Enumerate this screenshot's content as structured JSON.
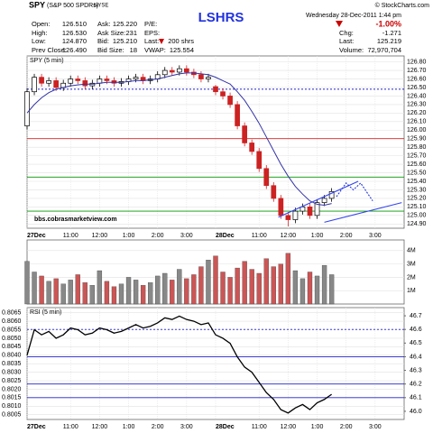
{
  "header": {
    "symbol": "SPY",
    "name": "(S&P 500 SPDRs)",
    "exchange": "NYSE",
    "copyright": "© StockCharts.com",
    "title": "LSHRS",
    "date": "Wednesday 28-Dec-2011 1:44 pm",
    "change_pct": "-1.00%",
    "quote": [
      [
        "Open:",
        "126.510"
      ],
      [
        "High:",
        "126.530"
      ],
      [
        "Low:",
        "124.870"
      ],
      [
        "Prev Close:",
        "126.490"
      ]
    ],
    "book": [
      [
        "Ask:",
        "125.220"
      ],
      [
        "Ask Size:",
        "231"
      ],
      [
        "Bid:",
        "125.210"
      ],
      [
        "Bid Size:",
        "18"
      ]
    ],
    "stats": [
      [
        "P/E:"
      ],
      [
        "EPS:"
      ],
      [
        "Last:",
        "200 shrs"
      ],
      [
        "VWAP:",
        "125.554"
      ]
    ],
    "summary": [
      [
        "Chg:",
        "-1.271"
      ],
      [
        "Last:",
        "125.219"
      ],
      [
        "Volume:",
        "72,970,704"
      ]
    ]
  },
  "chart_data": [
    {
      "type": "candlestick",
      "title": "SPY (5 min)",
      "annotation": "bbs.cobrasmarketview.com",
      "x": [
        0,
        3,
        6,
        9,
        12,
        15,
        18,
        21,
        24,
        27,
        30,
        33,
        36,
        39,
        42,
        45,
        48,
        51,
        54,
        57,
        60,
        63,
        66,
        69,
        72,
        75,
        78,
        81,
        84,
        87,
        90,
        93,
        96,
        99,
        102,
        105,
        108,
        111,
        114,
        117,
        120,
        123,
        126
      ],
      "open": [
        126.05,
        126.45,
        126.62,
        126.55,
        126.58,
        126.5,
        126.55,
        126.6,
        126.58,
        126.52,
        126.55,
        126.6,
        126.58,
        126.55,
        126.57,
        126.6,
        126.62,
        126.58,
        126.6,
        126.65,
        126.7,
        126.68,
        126.72,
        126.68,
        126.65,
        126.6,
        126.51,
        126.45,
        126.4,
        126.3,
        126.05,
        125.85,
        125.75,
        125.55,
        125.35,
        125.2,
        125.0,
        124.95,
        125.05,
        125.1,
        125.0,
        125.15,
        125.2
      ],
      "high": [
        126.49,
        126.66,
        126.66,
        126.62,
        126.62,
        126.59,
        126.64,
        126.64,
        126.62,
        126.59,
        126.64,
        126.64,
        126.62,
        126.61,
        126.64,
        126.66,
        126.66,
        126.64,
        126.69,
        126.74,
        126.74,
        126.76,
        126.76,
        126.72,
        126.69,
        126.66,
        126.53,
        126.49,
        126.44,
        126.34,
        126.09,
        125.89,
        125.79,
        125.59,
        125.39,
        125.24,
        125.04,
        125.09,
        125.14,
        125.14,
        125.19,
        125.24,
        125.32
      ],
      "low": [
        126.01,
        126.41,
        126.51,
        126.51,
        126.46,
        126.46,
        126.51,
        126.54,
        126.48,
        126.48,
        126.51,
        126.54,
        126.51,
        126.51,
        126.53,
        126.56,
        126.54,
        126.54,
        126.56,
        126.61,
        126.64,
        126.64,
        126.64,
        126.61,
        126.56,
        126.56,
        126.41,
        126.36,
        126.26,
        126.01,
        125.81,
        125.71,
        125.51,
        125.31,
        125.16,
        124.96,
        124.87,
        124.91,
        125.01,
        124.96,
        124.96,
        125.11,
        125.16
      ],
      "close": [
        126.45,
        126.62,
        126.55,
        126.58,
        126.5,
        126.55,
        126.6,
        126.58,
        126.52,
        126.55,
        126.6,
        126.58,
        126.55,
        126.57,
        126.6,
        126.62,
        126.58,
        126.6,
        126.65,
        126.7,
        126.68,
        126.72,
        126.68,
        126.65,
        126.6,
        126.62,
        126.45,
        126.4,
        126.3,
        126.05,
        125.85,
        125.75,
        125.55,
        125.35,
        125.2,
        125.0,
        124.95,
        125.05,
        125.1,
        125.0,
        125.15,
        125.2,
        125.28
      ],
      "up_color": "#000000",
      "down_color": "#cc2222",
      "ma": {
        "color": "#3333aa",
        "values": [
          126.2,
          126.3,
          126.38,
          126.44,
          126.48,
          126.5,
          126.52,
          126.53,
          126.54,
          126.54,
          126.55,
          126.56,
          126.56,
          126.56,
          126.57,
          126.58,
          126.58,
          126.59,
          126.6,
          126.62,
          126.64,
          126.66,
          126.67,
          126.67,
          126.66,
          126.65,
          126.62,
          126.58,
          126.54,
          126.45,
          126.35,
          126.22,
          126.08,
          125.92,
          125.76,
          125.6,
          125.46,
          125.34,
          125.25,
          125.17,
          125.13,
          125.12,
          125.14
        ]
      },
      "levels": [
        {
          "value": 125.05,
          "color": "#009900"
        },
        {
          "value": 125.45,
          "color": "#009900"
        },
        {
          "value": 125.9,
          "color": "#dd2222"
        },
        {
          "value": 126.48,
          "color": "#2222cc",
          "dashed": true
        }
      ],
      "trendlines": [
        {
          "color": "#3344ee",
          "points": [
            [
              104,
              124.98
            ],
            [
              137,
              125.4
            ]
          ]
        },
        {
          "color": "#3344ee",
          "points": [
            [
              123,
              124.92
            ],
            [
              155,
              125.15
            ]
          ]
        },
        {
          "color": "#2233dd",
          "dashed": true,
          "points": [
            [
              128,
              125.22
            ],
            [
              132,
              125.38
            ],
            [
              135,
              125.3
            ],
            [
              138,
              125.38
            ],
            [
              143,
              125.17
            ]
          ]
        }
      ],
      "xlim": [
        0,
        156
      ],
      "ylim": [
        124.85,
        126.87
      ],
      "xticks": [
        {
          "value": 0,
          "label": "27Dec"
        },
        {
          "value": 18,
          "label": "11:00"
        },
        {
          "value": 30,
          "label": "12:00"
        },
        {
          "value": 42,
          "label": "1:00"
        },
        {
          "value": 54,
          "label": "2:00"
        },
        {
          "value": 66,
          "label": "3:00"
        },
        {
          "value": 78,
          "label": "28Dec"
        },
        {
          "value": 96,
          "label": "11:00"
        },
        {
          "value": 108,
          "label": "12:00"
        },
        {
          "value": 120,
          "label": "1:00"
        },
        {
          "value": 132,
          "label": "2:00"
        },
        {
          "value": 144,
          "label": "3:00"
        }
      ],
      "yticks": [
        {
          "value": 124.9,
          "label": "124.90"
        },
        {
          "value": 125,
          "label": "125.00"
        },
        {
          "value": 125.1,
          "label": "125.10"
        },
        {
          "value": 125.2,
          "label": "125.20"
        },
        {
          "value": 125.3,
          "label": "125.30"
        },
        {
          "value": 125.4,
          "label": "125.40"
        },
        {
          "value": 125.5,
          "label": "125.50"
        },
        {
          "value": 125.6,
          "label": "125.60"
        },
        {
          "value": 125.7,
          "label": "125.70"
        },
        {
          "value": 125.8,
          "label": "125.80"
        },
        {
          "value": 125.9,
          "label": "125.90"
        },
        {
          "value": 126,
          "label": "126.00"
        },
        {
          "value": 126.1,
          "label": "126.10"
        },
        {
          "value": 126.2,
          "label": "126.20"
        },
        {
          "value": 126.3,
          "label": "126.30"
        },
        {
          "value": 126.4,
          "label": "126.40"
        },
        {
          "value": 126.5,
          "label": "126.50"
        },
        {
          "value": 126.6,
          "label": "126.60"
        },
        {
          "value": 126.7,
          "label": "126.70"
        },
        {
          "value": 126.8,
          "label": "126.80"
        }
      ],
      "grid": true
    },
    {
      "type": "bar",
      "x": [
        0,
        3,
        6,
        9,
        12,
        15,
        18,
        21,
        24,
        27,
        30,
        33,
        36,
        39,
        42,
        45,
        48,
        51,
        54,
        57,
        60,
        63,
        66,
        69,
        72,
        75,
        78,
        81,
        84,
        87,
        90,
        93,
        96,
        99,
        102,
        105,
        108,
        111,
        114,
        117,
        120,
        123,
        126
      ],
      "values": [
        3200000,
        2400000,
        2100000,
        1700000,
        1900000,
        1500000,
        1800000,
        2200000,
        1600000,
        1400000,
        2500000,
        1700000,
        1300000,
        1500000,
        2000000,
        1800000,
        1400000,
        1600000,
        2100000,
        2300000,
        1800000,
        2600000,
        1900000,
        2200000,
        2800000,
        3300000,
        3600000,
        2400000,
        2000000,
        2700000,
        3200000,
        2600000,
        2300000,
        3400000,
        2800000,
        3000000,
        3800000,
        2500000,
        1900000,
        2400000,
        2100000,
        2900000,
        2200000
      ],
      "up_color": "#888888",
      "down_color": "#cc5555",
      "xlim": [
        0,
        156
      ],
      "ylim": [
        0,
        4800000
      ],
      "yticks": [
        {
          "value": 1000000,
          "label": "1M"
        },
        {
          "value": 2000000,
          "label": "2M"
        },
        {
          "value": 3000000,
          "label": "3M"
        },
        {
          "value": 4000000,
          "label": "4M"
        }
      ],
      "grid": true
    },
    {
      "type": "line",
      "title": "RSI (5 min)",
      "color": "#000000",
      "x": [
        0,
        3,
        6,
        9,
        12,
        15,
        18,
        21,
        24,
        27,
        30,
        33,
        36,
        39,
        42,
        45,
        48,
        51,
        54,
        57,
        60,
        63,
        66,
        69,
        72,
        75,
        78,
        81,
        84,
        87,
        90,
        93,
        96,
        99,
        102,
        105,
        108,
        111,
        114,
        117,
        120,
        123,
        126
      ],
      "values": [
        0.804,
        0.8055,
        0.8052,
        0.8054,
        0.805,
        0.8052,
        0.8056,
        0.8055,
        0.8052,
        0.8053,
        0.8056,
        0.8055,
        0.8053,
        0.8054,
        0.8056,
        0.8058,
        0.8056,
        0.8057,
        0.8059,
        0.8062,
        0.8061,
        0.8063,
        0.8061,
        0.806,
        0.8058,
        0.8059,
        0.8052,
        0.805,
        0.8047,
        0.8039,
        0.8033,
        0.803,
        0.8024,
        0.8018,
        0.8014,
        0.8008,
        0.8006,
        0.8009,
        0.8011,
        0.8008,
        0.8012,
        0.8014,
        0.8017
      ],
      "levels": [
        {
          "value": 46.6,
          "color": "#2222cc",
          "dashed": true,
          "axis": "y2"
        },
        {
          "value": 46.4,
          "color": "#2222cc",
          "axis": "y2"
        },
        {
          "value": 46.2,
          "color": "#2222cc",
          "axis": "y2"
        },
        {
          "value": 46.1,
          "color": "#2222cc",
          "axis": "y2"
        }
      ],
      "xlim": [
        0,
        156
      ],
      "ylim": [
        0.80022,
        0.8068
      ],
      "y2lim": [
        45.94,
        46.76
      ],
      "xticks": [
        {
          "value": 0,
          "label": "27Dec"
        },
        {
          "value": 18,
          "label": "11:00"
        },
        {
          "value": 30,
          "label": "12:00"
        },
        {
          "value": 42,
          "label": "1:00"
        },
        {
          "value": 54,
          "label": "2:00"
        },
        {
          "value": 66,
          "label": "3:00"
        },
        {
          "value": 78,
          "label": "28Dec"
        },
        {
          "value": 96,
          "label": "11:00"
        },
        {
          "value": 108,
          "label": "12:00"
        },
        {
          "value": 120,
          "label": "1:00"
        },
        {
          "value": 132,
          "label": "2:00"
        },
        {
          "value": 144,
          "label": "3:00"
        }
      ],
      "yticks": [
        0.8005,
        {
          "value": 0.801,
          "label": "0.8010"
        },
        0.8015,
        {
          "value": 0.802,
          "label": "0.8020"
        },
        0.8025,
        {
          "value": 0.803,
          "label": "0.8030"
        },
        0.8035,
        {
          "value": 0.804,
          "label": "0.8040"
        },
        0.8045,
        {
          "value": 0.805,
          "label": "0.8050"
        },
        0.8055,
        {
          "value": 0.806,
          "label": "0.8060"
        },
        0.8065
      ],
      "y2ticks": [
        {
          "value": 46,
          "label": "46.0"
        },
        46.1,
        46.2,
        46.3,
        46.4,
        46.5,
        46.6,
        46.7
      ],
      "grid": true
    }
  ]
}
